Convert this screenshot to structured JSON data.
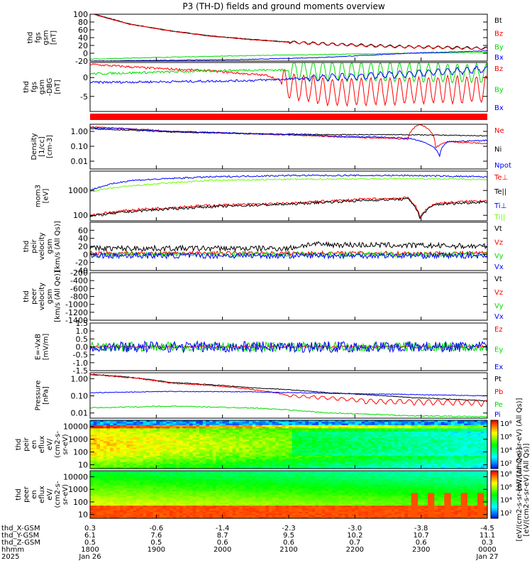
{
  "title": "P3 (TH-D) fields and ground moments overview",
  "colors": {
    "black": "#000000",
    "red": "#ff0000",
    "green": "#00dd00",
    "blue": "#0000ff",
    "lime": "#66ff00"
  },
  "chart_data": [
    {
      "id": "p1",
      "type": "line",
      "ylabel_lines": [
        "thd",
        "fgs",
        "gsm",
        "[nT]"
      ],
      "ylim": [
        -20,
        100
      ],
      "yscale": "linear",
      "yticks": [
        {
          "v": 100,
          "t": "100"
        },
        {
          "v": 80,
          "t": "80"
        },
        {
          "v": 60,
          "t": "60"
        },
        {
          "v": 40,
          "t": "40"
        },
        {
          "v": 20,
          "t": "20"
        },
        {
          "v": 0,
          "t": "0"
        },
        {
          "v": -20,
          "t": "-20"
        }
      ],
      "series": [
        {
          "name": "Bt",
          "color": "black",
          "x": [
            0,
            0.1,
            0.2,
            0.3,
            0.4,
            0.5,
            0.6,
            0.7,
            0.8,
            0.9,
            1.0
          ],
          "y": [
            103,
            75,
            58,
            45,
            36,
            29,
            24,
            20,
            17,
            15,
            13
          ],
          "noise": 0.6,
          "osc_from": 0.5,
          "osc_amp": 3
        },
        {
          "name": "Bz",
          "color": "red",
          "x": [
            0,
            0.1,
            0.2,
            0.3,
            0.4,
            0.5,
            0.6,
            0.7,
            0.8,
            0.9,
            1.0
          ],
          "y": [
            102,
            74,
            57,
            44,
            35,
            28,
            23,
            19,
            16,
            14,
            12
          ],
          "noise": 0.6,
          "osc_from": 0.5,
          "osc_amp": 3
        },
        {
          "name": "By",
          "color": "green",
          "x": [
            0,
            0.2,
            0.4,
            0.6,
            0.8,
            1.0
          ],
          "y": [
            -15,
            -10,
            -6,
            -3,
            0,
            2
          ],
          "noise": 0.8
        },
        {
          "name": "Bx",
          "color": "blue",
          "x": [
            0,
            0.2,
            0.4,
            0.6,
            0.8,
            1.0
          ],
          "y": [
            -20,
            -18,
            -16,
            -10,
            0,
            6
          ],
          "noise": 0.8
        }
      ]
    },
    {
      "id": "p2",
      "type": "line",
      "ylabel_lines": [
        "thd",
        "fgs",
        "gsm",
        "-DBG",
        "[nT]"
      ],
      "ylim": [
        -9,
        4
      ],
      "yscale": "linear",
      "yticks": [
        {
          "v": 0,
          "t": "0"
        },
        {
          "v": -5,
          "t": "-5"
        }
      ],
      "series": [
        {
          "name": "Bz",
          "color": "red",
          "x": [
            0,
            0.15,
            0.3,
            0.45,
            0.5,
            0.6,
            1.0
          ],
          "y": [
            3.5,
            2.5,
            1.8,
            0.5,
            -2,
            -4,
            -3
          ],
          "noise": 0.3,
          "osc_from": 0.48,
          "osc_amp": 3.5
        },
        {
          "name": "By",
          "color": "green",
          "x": [
            0,
            0.2,
            0.4,
            0.5,
            0.7,
            1.0
          ],
          "y": [
            1,
            1.5,
            2,
            2,
            1.5,
            1
          ],
          "noise": 0.3,
          "osc_from": 0.5,
          "osc_amp": 2.5
        },
        {
          "name": "Bx",
          "color": "blue",
          "x": [
            0,
            0.2,
            0.4,
            0.6,
            0.8,
            1.0
          ],
          "y": [
            -1.3,
            -1.1,
            -0.8,
            0,
            1,
            2.2
          ],
          "noise": 0.3,
          "osc_from": 0.55,
          "osc_amp": 0.8
        }
      ]
    },
    {
      "id": "p3",
      "type": "line",
      "ylabel_lines": [
        "Density",
        "[1/cc]",
        "[cm-3]"
      ],
      "ylim": [
        0.003,
        3
      ],
      "yscale": "log",
      "yticks": [
        {
          "v": 1,
          "t": "1.00"
        },
        {
          "v": 0.1,
          "t": "0.10"
        },
        {
          "v": 0.01,
          "t": "0.01"
        }
      ],
      "series": [
        {
          "name": "Ne",
          "color": "red",
          "x": [
            0,
            0.2,
            0.4,
            0.6,
            0.8,
            0.83,
            0.87,
            0.9,
            1.0
          ],
          "y": [
            2,
            1,
            0.7,
            0.45,
            0.3,
            3,
            0.08,
            0.2,
            0.15
          ],
          "noise": 0.04
        },
        {
          "name": "Ni",
          "color": "black",
          "x": [
            0,
            0.2,
            0.4,
            0.6,
            0.8,
            1.0
          ],
          "y": [
            1.5,
            0.9,
            0.7,
            0.6,
            0.6,
            0.5
          ],
          "noise": 0.03
        },
        {
          "name": "Npot",
          "color": "blue",
          "x": [
            0,
            0.2,
            0.4,
            0.6,
            0.8,
            0.88,
            0.9,
            1.0
          ],
          "y": [
            1.8,
            1,
            0.7,
            0.5,
            0.35,
            0.02,
            0.2,
            0.25
          ],
          "noise": 0.04
        }
      ]
    },
    {
      "id": "p4",
      "type": "line",
      "ylabel_lines": [
        "mom3",
        "[eV]"
      ],
      "ylim": [
        60,
        6000
      ],
      "yscale": "log",
      "yticks": [
        {
          "v": 1000,
          "t": "1000"
        },
        {
          "v": 100,
          "t": "100"
        }
      ],
      "series": [
        {
          "name": "Te⊥",
          "color": "red",
          "x": [
            0,
            0.1,
            0.3,
            0.5,
            0.7,
            0.8,
            0.83,
            0.87,
            1.0
          ],
          "y": [
            100,
            160,
            250,
            300,
            450,
            500,
            80,
            300,
            400
          ],
          "noise": 0.05
        },
        {
          "name": "Te||",
          "color": "black",
          "x": [
            0,
            0.1,
            0.3,
            0.5,
            0.7,
            0.8,
            0.83,
            0.87,
            1.0
          ],
          "y": [
            90,
            140,
            220,
            280,
            400,
            450,
            70,
            270,
            350
          ],
          "noise": 0.05
        },
        {
          "name": "Ti⊥",
          "color": "blue",
          "x": [
            0,
            0.1,
            0.3,
            0.5,
            0.8,
            1.0
          ],
          "y": [
            1000,
            2500,
            3500,
            4000,
            4000,
            3500
          ],
          "noise": 0.03
        },
        {
          "name": "Ti||",
          "color": "lime",
          "x": [
            0,
            0.1,
            0.3,
            0.5,
            0.8,
            1.0
          ],
          "y": [
            900,
            1500,
            2500,
            2800,
            3000,
            2800
          ],
          "noise": 0.03
        }
      ]
    },
    {
      "id": "p5",
      "type": "line",
      "ylabel_lines": [
        "thd",
        "peir",
        "velocity",
        "gsm",
        "[km/s (All Qs)]"
      ],
      "ylim": [
        -40,
        80
      ],
      "yscale": "linear",
      "yticks": [
        {
          "v": 60,
          "t": "60"
        },
        {
          "v": 40,
          "t": "40"
        },
        {
          "v": 20,
          "t": "20"
        },
        {
          "v": 0,
          "t": "0"
        },
        {
          "v": -20,
          "t": "-20"
        },
        {
          "v": -40,
          "t": "-40"
        }
      ],
      "series": [
        {
          "name": "Vt",
          "color": "black",
          "x": [
            0,
            0.5,
            0.55,
            1.0
          ],
          "y": [
            15,
            15,
            25,
            20
          ],
          "noise": 7
        },
        {
          "name": "Vz",
          "color": "red",
          "x": [
            0,
            1.0
          ],
          "y": [
            3,
            3
          ],
          "noise": 5
        },
        {
          "name": "Vy",
          "color": "green",
          "x": [
            0,
            1.0
          ],
          "y": [
            0,
            0
          ],
          "noise": 6
        },
        {
          "name": "Vx",
          "color": "blue",
          "x": [
            0,
            1.0
          ],
          "y": [
            -3,
            -3
          ],
          "noise": 7
        }
      ]
    },
    {
      "id": "p6",
      "type": "line",
      "ylabel_lines": [
        "thd",
        "peer",
        "velocity",
        "gsm",
        "[km/s (All Qe)]"
      ],
      "ylim": [
        -1400,
        -200
      ],
      "yscale": "linear",
      "yticks": [
        {
          "v": -200,
          "t": "-200"
        },
        {
          "v": -400,
          "t": "-400"
        },
        {
          "v": -600,
          "t": "-600"
        },
        {
          "v": -800,
          "t": "-800"
        },
        {
          "v": -1000,
          "t": "-1000"
        },
        {
          "v": -1200,
          "t": "-1200"
        },
        {
          "v": -1400,
          "t": "-1400"
        }
      ],
      "series": [
        {
          "name": "Vt",
          "color": "black",
          "x": [],
          "y": []
        },
        {
          "name": "Vz",
          "color": "red",
          "x": [],
          "y": []
        },
        {
          "name": "Vy",
          "color": "green",
          "x": [],
          "y": []
        },
        {
          "name": "Vx",
          "color": "blue",
          "x": [],
          "y": []
        }
      ]
    },
    {
      "id": "p7",
      "type": "line",
      "ylabel_lines": [
        "E=-VxB",
        "[mV/m]"
      ],
      "ylim": [
        -1.5,
        1.5
      ],
      "yscale": "linear",
      "yticks": [
        {
          "v": 1.5,
          "t": "1.5"
        },
        {
          "v": 1,
          "t": "1.0"
        },
        {
          "v": 0.5,
          "t": "0.5"
        },
        {
          "v": 0,
          "t": "0.0"
        },
        {
          "v": -0.5,
          "t": "-0.5"
        },
        {
          "v": -1,
          "t": "-1.0"
        },
        {
          "v": -1.5,
          "t": "-1.5"
        }
      ],
      "series": [
        {
          "name": "Ez",
          "color": "red",
          "x": [
            0,
            1.0
          ],
          "y": [
            0,
            0
          ],
          "noise": 0.08
        },
        {
          "name": "Ey",
          "color": "green",
          "x": [
            0,
            1.0
          ],
          "y": [
            0,
            0
          ],
          "noise": 0.3
        },
        {
          "name": "Ex",
          "color": "blue",
          "x": [
            0,
            1.0
          ],
          "y": [
            0,
            0
          ],
          "noise": 0.35
        }
      ]
    },
    {
      "id": "p8",
      "type": "line",
      "ylabel_lines": [
        "Pressure",
        "[nPa]"
      ],
      "ylim": [
        0.005,
        2.2
      ],
      "yscale": "log",
      "yticks": [
        {
          "v": 1,
          "t": "1.00"
        },
        {
          "v": 0.1,
          "t": "0.10"
        },
        {
          "v": 0.01,
          "t": "0.01"
        }
      ],
      "series": [
        {
          "name": "Pt",
          "color": "black",
          "x": [
            0,
            0.2,
            0.4,
            0.6,
            0.8,
            1.0
          ],
          "y": [
            1.8,
            0.6,
            0.3,
            0.15,
            0.08,
            0.05
          ],
          "noise": 0.02
        },
        {
          "name": "Pb",
          "color": "red",
          "x": [
            0,
            0.2,
            0.4,
            0.5,
            0.7,
            1.0
          ],
          "y": [
            1.7,
            0.55,
            0.25,
            0.1,
            0.05,
            0.04
          ],
          "noise": 0.03,
          "osc_from": 0.5,
          "osc_amp": 0.015
        },
        {
          "name": "Pe",
          "color": "green",
          "x": [
            0,
            0.2,
            0.4,
            0.6,
            0.8,
            1.0
          ],
          "y": [
            0.02,
            0.025,
            0.02,
            0.01,
            0.007,
            0.006
          ],
          "noise": 0.03
        },
        {
          "name": "Pi",
          "color": "blue",
          "x": [
            0,
            0.2,
            0.4,
            0.6,
            0.8,
            1.0
          ],
          "y": [
            0.15,
            0.18,
            0.17,
            0.14,
            0.12,
            0.1
          ],
          "noise": 0.02
        }
      ]
    },
    {
      "id": "p9",
      "type": "heatmap",
      "ylabel_lines": [
        "thd",
        "peir",
        "en",
        "eflux",
        "eV/",
        "(cm2-s-",
        "sr-eV)"
      ],
      "ylim": [
        5,
        30000
      ],
      "yscale": "log",
      "yticks": [
        {
          "v": 10000,
          "t": "10000"
        },
        {
          "v": 1000,
          "t": "1000"
        },
        {
          "v": 100,
          "t": "100"
        },
        {
          "v": 10,
          "t": "10"
        }
      ],
      "colorbar": {
        "label": "[eV/(cm2-s-sr-eV) (All Qs)]",
        "ticks": [
          "10⁸",
          "10⁶",
          "10⁴",
          "10²"
        ]
      }
    },
    {
      "id": "p10",
      "type": "heatmap",
      "ylabel_lines": [
        "thd",
        "peer",
        "en",
        "eflux",
        "eV/",
        "(cm2-s-",
        "sr-eV)"
      ],
      "ylim": [
        5,
        30000
      ],
      "yscale": "log",
      "yticks": [
        {
          "v": 10000,
          "t": "10000"
        },
        {
          "v": 1000,
          "t": "1000"
        },
        {
          "v": 100,
          "t": "100"
        },
        {
          "v": 10,
          "t": "10"
        }
      ],
      "colorbar": {
        "label": "[eV/(cm2-s-sr-eV) (All Qe)]",
        "ticks": [
          "10⁸",
          "10⁶",
          "10⁴",
          "10²"
        ]
      }
    }
  ],
  "xaxis": {
    "rows": [
      {
        "label": "thd_X-GSM",
        "values": [
          "0.3",
          "-0.6",
          "-1.4",
          "-2.3",
          "-3.0",
          "-3.8",
          "-4.5"
        ]
      },
      {
        "label": "thd_Y-GSM",
        "values": [
          "6.1",
          "7.6",
          "8.7",
          "9.5",
          "10.2",
          "10.7",
          "11.1"
        ]
      },
      {
        "label": "thd_Z-GSM",
        "values": [
          "0.5",
          "0.5",
          "0.6",
          "0.6",
          "0.7",
          "0.6",
          "0.3"
        ]
      },
      {
        "label": "hhmm",
        "values": [
          "1800",
          "1900",
          "2000",
          "2100",
          "2200",
          "2300",
          "0000"
        ]
      },
      {
        "label": "2025",
        "values": [
          "Jan 26",
          "",
          "",
          "",
          "",
          "",
          "Jan 27"
        ]
      }
    ]
  },
  "extra_colorbar_label": "[eV/(cm2-s-sr-eV) (All Qs)]"
}
